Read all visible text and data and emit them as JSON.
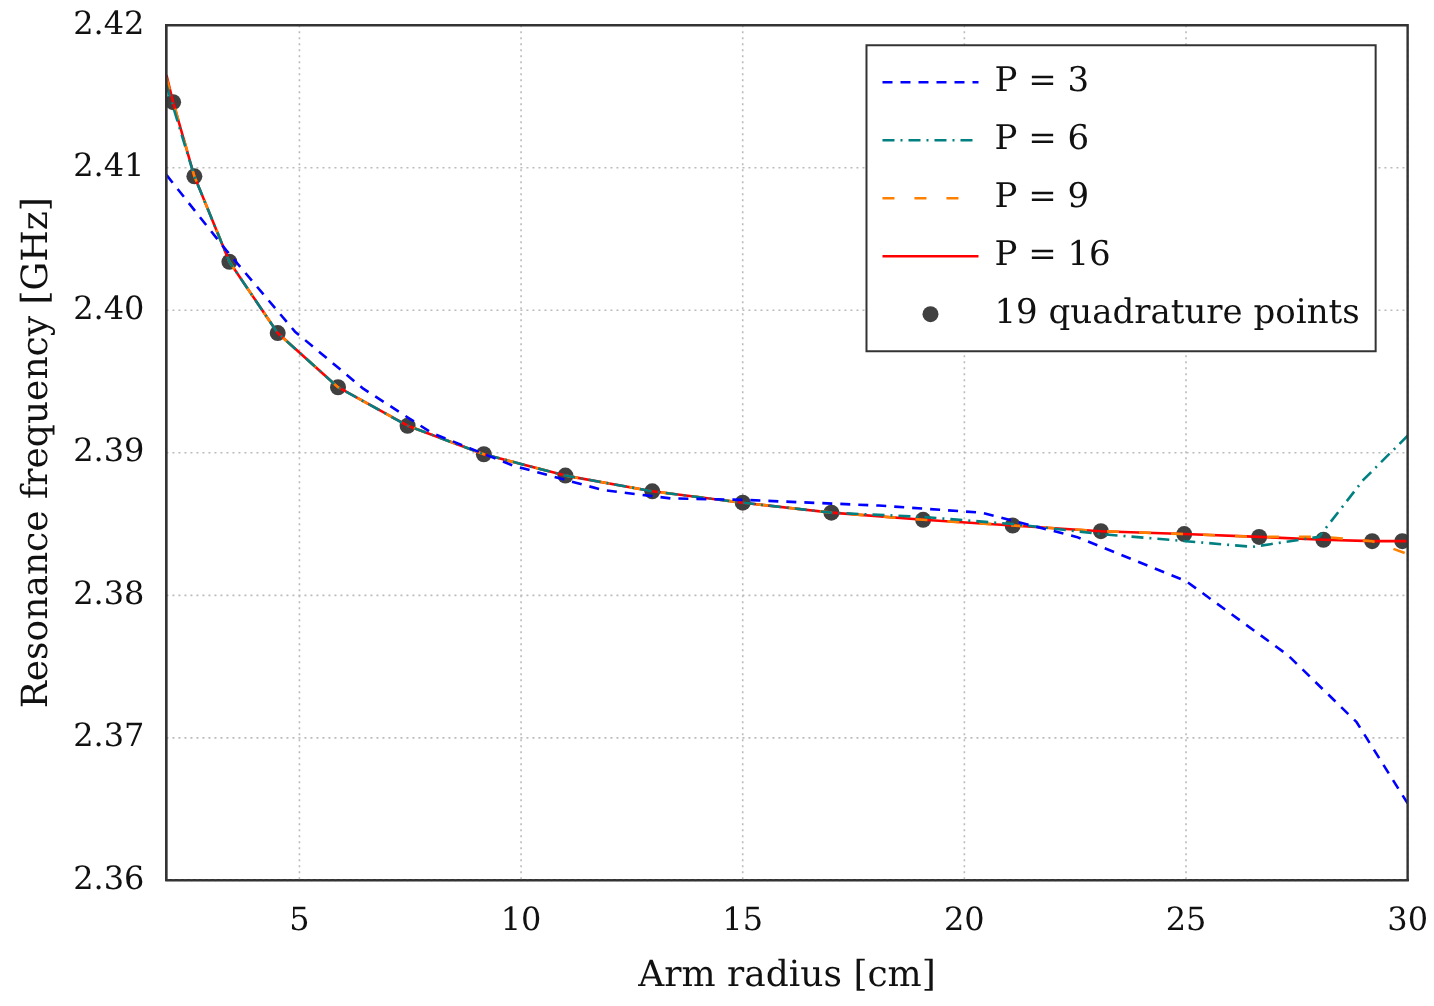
{
  "chart_data": {
    "type": "line",
    "xlabel": "Arm radius [cm]",
    "ylabel": "Resonance frequency [GHz]",
    "xlim": [
      2,
      30
    ],
    "xticks": [
      5,
      10,
      15,
      20,
      25,
      30
    ],
    "ylim": [
      2.36,
      2.42
    ],
    "yticks": [
      2.36,
      2.37,
      2.38,
      2.39,
      {
        "value": 2.4,
        "label": "2.40"
      },
      2.41,
      2.42
    ],
    "grid": true,
    "legend": "top right",
    "marker": "none",
    "series": [
      {
        "name": "P = 3",
        "color": "#0000ff",
        "line_style": "dashed",
        "x": [
          2,
          3.35,
          4.9,
          6.44,
          7.98,
          9.82,
          11.83,
          13.37,
          15,
          18.07,
          20.38,
          22.53,
          25,
          27.3,
          28.85,
          30
        ],
        "values": [
          2.4095,
          2.4042,
          2.3985,
          2.3945,
          2.3914,
          2.3891,
          2.3874,
          2.3868,
          2.3867,
          2.3863,
          2.3858,
          2.3841,
          2.381,
          2.3758,
          2.3711,
          2.3654
        ]
      },
      {
        "name": "P = 6",
        "color": "#008080",
        "line_style": "dashdot",
        "x": [
          2,
          2.63,
          3.42,
          4.51,
          5.87,
          7.44,
          9.16,
          11,
          12.96,
          15,
          17,
          19.07,
          21.09,
          23.08,
          25,
          26.5,
          28,
          29,
          30
        ],
        "values": [
          2.4158,
          2.4094,
          2.4034,
          2.3984,
          2.3946,
          2.3919,
          2.3899,
          2.3884,
          2.3873,
          2.3865,
          2.3858,
          2.3855,
          2.385,
          2.3843,
          2.3838,
          2.3834,
          2.3841,
          2.3881,
          2.3912
        ]
      },
      {
        "name": "P = 9",
        "color": "#ff8000",
        "line_style": "loosely dashed",
        "x": [
          2,
          2.63,
          3.42,
          4.51,
          5.87,
          7.44,
          9.16,
          11,
          12.96,
          15,
          17,
          19.07,
          21.09,
          23.08,
          24.96,
          26.65,
          28.1,
          29.2,
          30
        ],
        "values": [
          2.4163,
          2.4094,
          2.4034,
          2.3984,
          2.3946,
          2.3919,
          2.3899,
          2.3884,
          2.3873,
          2.3865,
          2.3858,
          2.3853,
          2.3849,
          2.3845,
          2.3843,
          2.3841,
          2.3841,
          2.3838,
          2.3829
        ]
      },
      {
        "name": "P = 16",
        "color": "#ff0000",
        "line_style": "solid",
        "x": [
          2,
          2.15,
          2.63,
          3.42,
          4.51,
          5.87,
          7.44,
          9.16,
          11,
          12.96,
          15,
          17,
          19.07,
          21.09,
          23.08,
          24.96,
          26.65,
          28.1,
          29.2,
          29.88,
          30
        ],
        "values": [
          2.4165,
          2.4146,
          2.4094,
          2.4034,
          2.3984,
          2.3946,
          2.3919,
          2.3899,
          2.3884,
          2.3873,
          2.3865,
          2.3858,
          2.3853,
          2.3849,
          2.3845,
          2.3843,
          2.3841,
          2.3839,
          2.3838,
          2.3838,
          2.3838
        ]
      },
      {
        "name": "19 quadrature points",
        "type": "scatter",
        "marker": "circle",
        "color": "#404040",
        "x": [
          2.15,
          2.63,
          3.42,
          4.51,
          5.87,
          7.44,
          9.16,
          11,
          12.96,
          15,
          17,
          19.07,
          21.09,
          23.08,
          24.96,
          26.65,
          28.1,
          29.2,
          29.88
        ],
        "values": [
          2.4146,
          2.4094,
          2.4034,
          2.3984,
          2.3946,
          2.3919,
          2.3899,
          2.3884,
          2.3873,
          2.3865,
          2.3858,
          2.3853,
          2.3849,
          2.3845,
          2.3843,
          2.3841,
          2.3839,
          2.3838,
          2.3838
        ]
      }
    ]
  }
}
